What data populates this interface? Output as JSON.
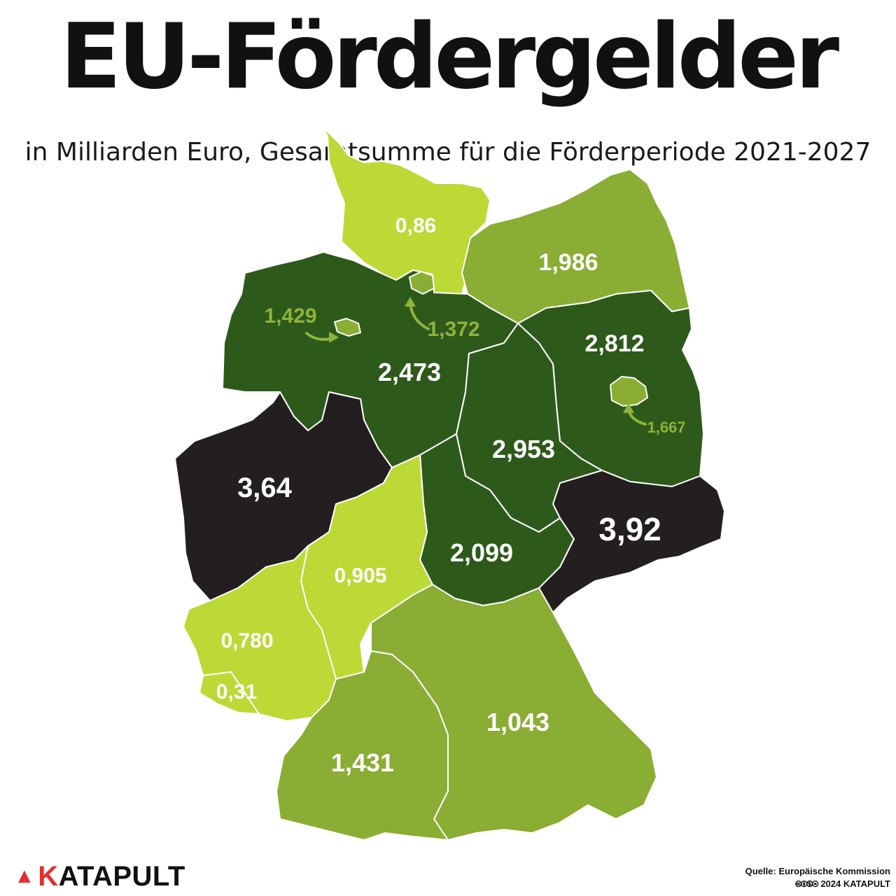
{
  "title": "EU-Fördergelder",
  "subtitle": "in Milliarden Euro, Gesamtsumme für die Förderperiode 2021-2027",
  "colors": {
    "light": "#bcd935",
    "medium": "#8aad33",
    "dark": "#2d5a1b",
    "darkest": "#231f20",
    "accent": "#e52d2d"
  },
  "regions": {
    "schleswig_holstein": "0,86",
    "mecklenburg_vorpommern": "1,986",
    "hamburg": "1,372",
    "bremen": "1,429",
    "niedersachsen": "2,473",
    "berlin": "1,667",
    "brandenburg": "2,812",
    "sachsen_anhalt": "2,953",
    "nordrhein_westfalen": "3,64",
    "thueringen": "2,099",
    "sachsen": "3,92",
    "hessen": "0,905",
    "rheinland_pfalz": "0,780",
    "saarland": "0,31",
    "baden_wuerttemberg": "1,431",
    "bayern": "1,043"
  },
  "logo": {
    "mark_icon": "rocket-icon",
    "first_letter": "K",
    "rest": "ATAPULT"
  },
  "source": {
    "line1": "Quelle: Europäische Kommission",
    "license_icons": "🅭🅯🄏⊜",
    "line2": "2024 KATAPULT"
  }
}
